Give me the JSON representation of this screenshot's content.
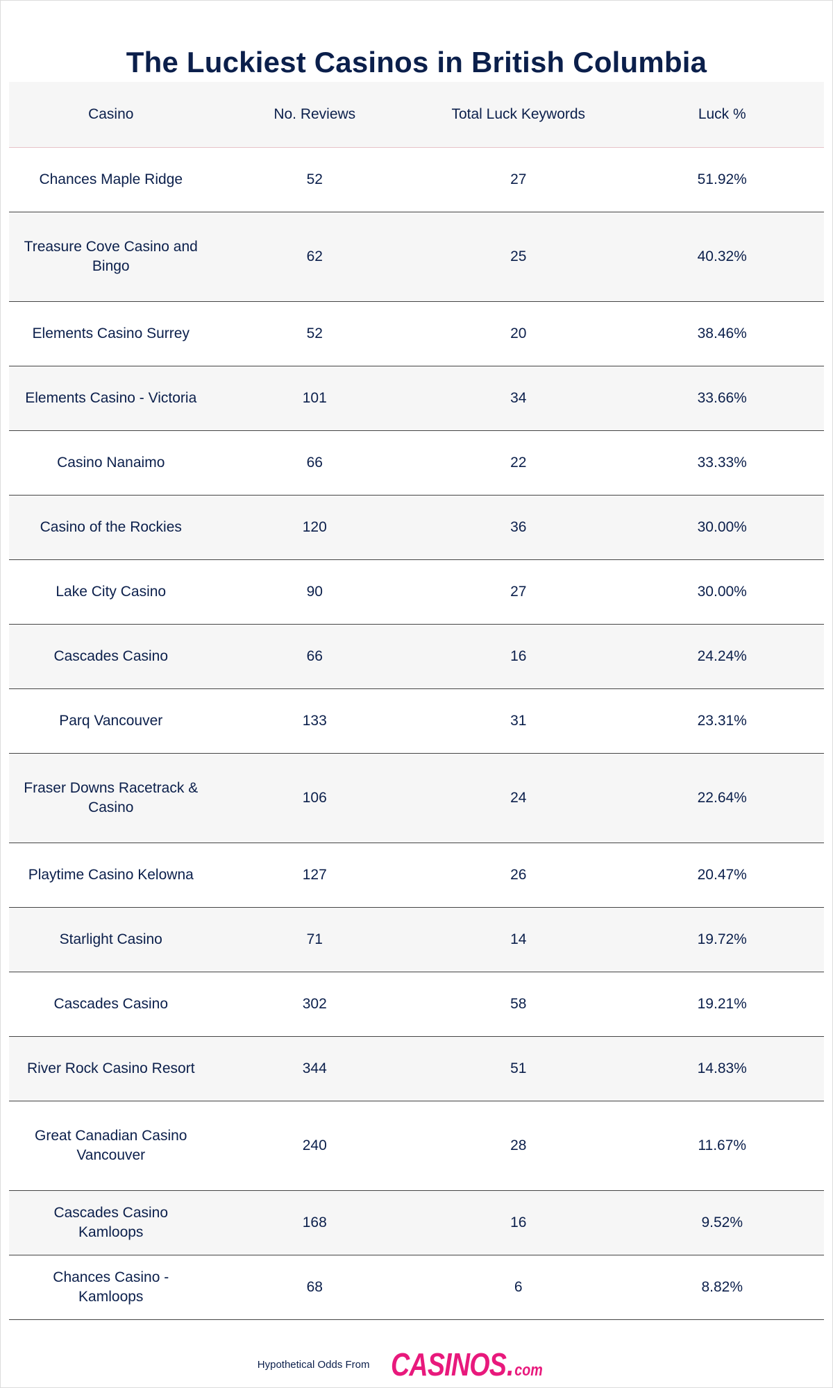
{
  "title": "The Luckiest Casinos in British Columbia",
  "table": {
    "headers": [
      "Casino",
      "No. Reviews",
      "Total Luck Keywords",
      "Luck %"
    ],
    "rows": [
      {
        "casino": "Chances Maple Ridge",
        "reviews": "52",
        "keywords": "27",
        "luck": "51.92%"
      },
      {
        "casino": "Treasure Cove Casino and Bingo",
        "reviews": "62",
        "keywords": "25",
        "luck": "40.32%"
      },
      {
        "casino": "Elements Casino Surrey",
        "reviews": "52",
        "keywords": "20",
        "luck": "38.46%"
      },
      {
        "casino": "Elements Casino - Victoria",
        "reviews": "101",
        "keywords": "34",
        "luck": "33.66%"
      },
      {
        "casino": "Casino Nanaimo",
        "reviews": "66",
        "keywords": "22",
        "luck": "33.33%"
      },
      {
        "casino": "Casino of the Rockies",
        "reviews": "120",
        "keywords": "36",
        "luck": "30.00%"
      },
      {
        "casino": "Lake City Casino",
        "reviews": "90",
        "keywords": "27",
        "luck": "30.00%"
      },
      {
        "casino": "Cascades Casino",
        "reviews": "66",
        "keywords": "16",
        "luck": "24.24%"
      },
      {
        "casino": "Parq Vancouver",
        "reviews": "133",
        "keywords": "31",
        "luck": "23.31%"
      },
      {
        "casino": "Fraser Downs Racetrack & Casino",
        "reviews": "106",
        "keywords": "24",
        "luck": "22.64%"
      },
      {
        "casino": "Playtime Casino Kelowna",
        "reviews": "127",
        "keywords": "26",
        "luck": "20.47%"
      },
      {
        "casino": "Starlight Casino",
        "reviews": "71",
        "keywords": "14",
        "luck": "19.72%"
      },
      {
        "casino": "Cascades Casino",
        "reviews": "302",
        "keywords": "58",
        "luck": "19.21%"
      },
      {
        "casino": "River Rock Casino Resort",
        "reviews": "344",
        "keywords": "51",
        "luck": "14.83%"
      },
      {
        "casino": "Great Canadian Casino Vancouver",
        "reviews": "240",
        "keywords": "28",
        "luck": "11.67%"
      },
      {
        "casino": "Cascades Casino Kamloops",
        "reviews": "168",
        "keywords": "16",
        "luck": "9.52%"
      },
      {
        "casino": "Chances Casino - Kamloops",
        "reviews": "68",
        "keywords": "6",
        "luck": "8.82%"
      }
    ]
  },
  "footer": {
    "text": "Hypothetical Odds From",
    "logo_main": "CASINOS",
    "logo_dot": ".",
    "logo_tld": "com"
  },
  "colors": {
    "text": "#0b1f4b",
    "stripe": "#f6f6f6",
    "brand": "#e8197c"
  }
}
